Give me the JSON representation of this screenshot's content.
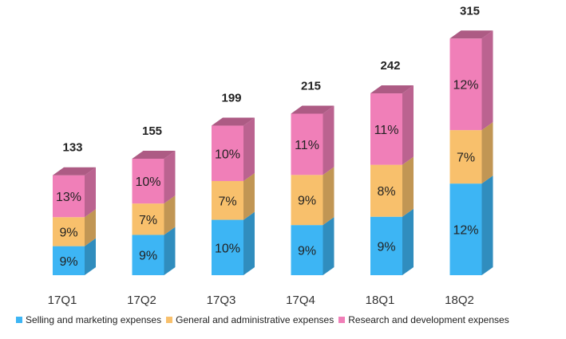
{
  "chart_data": {
    "type": "bar",
    "stacked": true,
    "categories": [
      "17Q1",
      "17Q2",
      "17Q3",
      "17Q4",
      "18Q1",
      "18Q2"
    ],
    "totals": [
      133,
      155,
      199,
      215,
      242,
      315
    ],
    "series": [
      {
        "name": "Selling and marketing expenses",
        "color": "#3db5f4",
        "labels": [
          "9%",
          "9%",
          "10%",
          "9%",
          "9%",
          "12%"
        ]
      },
      {
        "name": "General and administrative expenses",
        "color": "#f8c06c",
        "labels": [
          "9%",
          "7%",
          "7%",
          "9%",
          "8%",
          "7%"
        ]
      },
      {
        "name": "Research and development expenses",
        "color": "#f07fb8",
        "labels": [
          "13%",
          "10%",
          "10%",
          "11%",
          "11%",
          "12%"
        ]
      }
    ],
    "legend_position": "bottom",
    "grid": false
  }
}
